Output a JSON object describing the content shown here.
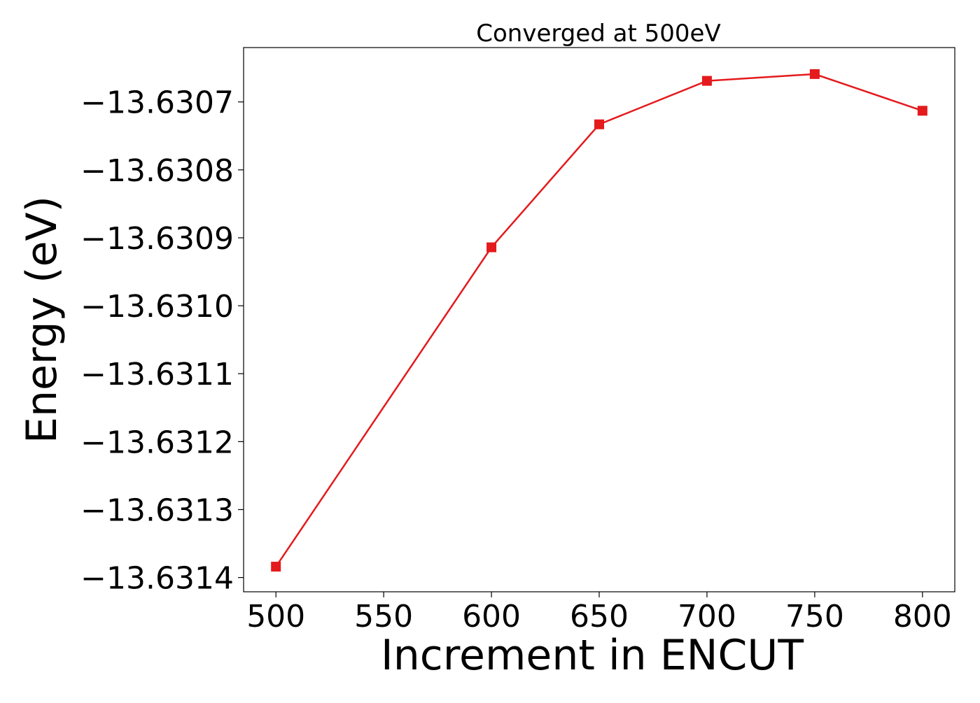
{
  "chart_data": {
    "type": "line",
    "title": "Converged at 500eV",
    "xlabel": "Increment in ENCUT",
    "ylabel": "Energy (eV)",
    "x": [
      500,
      600,
      650,
      700,
      750,
      800
    ],
    "series": [
      {
        "values": [
          -13.631384,
          -13.630914,
          -13.630733,
          -13.630669,
          -13.630659,
          -13.630713
        ],
        "color": "#e41a1c",
        "marker": "square"
      }
    ],
    "xlim": [
      485,
      815
    ],
    "ylim": [
      -13.631421,
      -13.63062
    ],
    "xticks": [
      500,
      550,
      600,
      650,
      700,
      750,
      800
    ],
    "xtick_labels": [
      "500",
      "550",
      "600",
      "650",
      "700",
      "750",
      "800"
    ],
    "yticks": [
      -13.6307,
      -13.6308,
      -13.6309,
      -13.631,
      -13.6311,
      -13.6312,
      -13.6313,
      -13.6314
    ],
    "ytick_labels": [
      "−13.6307",
      "−13.6308",
      "−13.6309",
      "−13.6310",
      "−13.6311",
      "−13.6312",
      "−13.6313",
      "−13.6314"
    ],
    "grid": false,
    "legend": "none"
  }
}
